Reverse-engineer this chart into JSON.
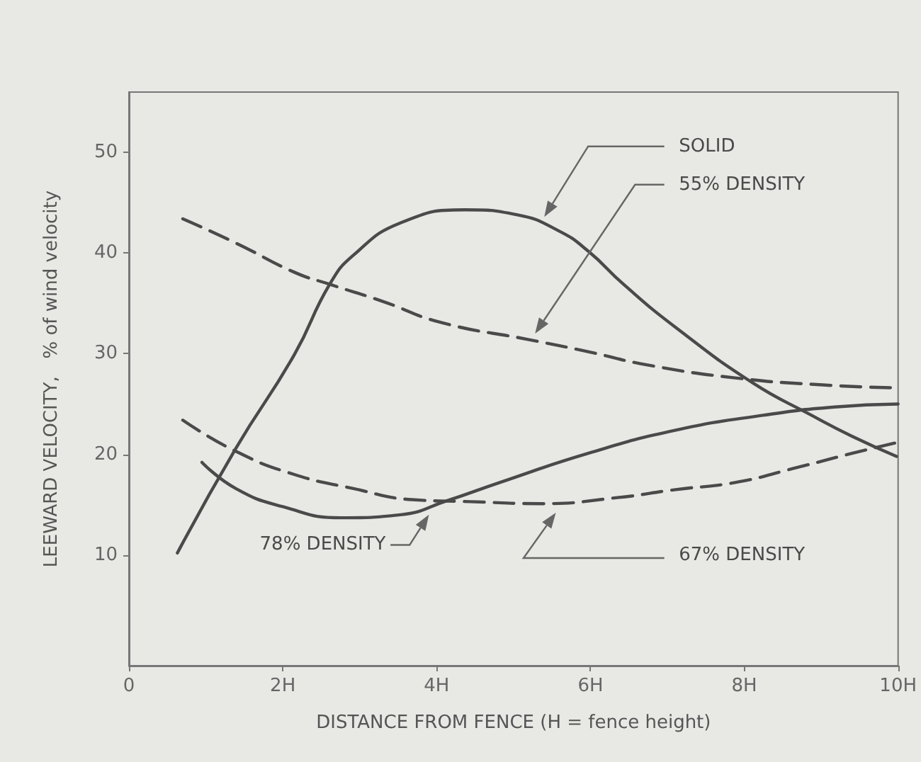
{
  "chart_data": {
    "type": "line",
    "xlabel": "DISTANCE FROM FENCE (H = fence height)",
    "ylabel": "LEEWARD VELOCITY,   % of wind velocity",
    "xlim": [
      0,
      10
    ],
    "xticks": [
      0,
      {
        "value": 2,
        "label": "2H"
      },
      {
        "value": 4,
        "label": "4H"
      },
      {
        "value": 6,
        "label": "6H"
      },
      {
        "value": 8,
        "label": "8H"
      },
      {
        "value": 10,
        "label": "10H"
      }
    ],
    "ylim": [
      -1,
      56
    ],
    "yticks": [
      10,
      20,
      30,
      40,
      50
    ],
    "grid": false,
    "legend": false,
    "marker": "none",
    "series": [
      {
        "name": "SOLID",
        "color": "#4a4a4a",
        "line_style": "solid",
        "x": [
          0.63,
          1.39,
          2.15,
          2.61,
          2.92,
          3.53,
          4.37,
          5.05,
          5.59,
          5.97,
          6.43,
          7.11,
          8.11,
          8.87,
          9.4,
          9.98
        ],
        "values": [
          10.2,
          20.6,
          29.9,
          36.9,
          39.8,
          43.0,
          44.3,
          43.8,
          42.2,
          40.2,
          36.9,
          32.6,
          27.1,
          23.9,
          21.8,
          19.8
        ]
      },
      {
        "name": "55% DENSITY",
        "color": "#4a4a4a",
        "line_style": "dashed",
        "x": [
          0.7,
          1.39,
          2.15,
          2.61,
          3.3,
          4.06,
          5.2,
          5.97,
          6.73,
          7.88,
          9.02,
          10
        ],
        "values": [
          43.4,
          41.0,
          38.1,
          36.9,
          35.2,
          33.1,
          31.4,
          30.2,
          28.9,
          27.6,
          26.9,
          26.6
        ]
      },
      {
        "name": "67% DENSITY",
        "color": "#4a4a4a",
        "line_style": "dashed",
        "x": [
          0.7,
          1.39,
          2.15,
          2.92,
          3.68,
          4.44,
          5.36,
          6.35,
          7.11,
          7.88,
          8.64,
          9.4,
          10
        ],
        "values": [
          23.4,
          20.3,
          18.0,
          16.6,
          15.5,
          15.3,
          15.1,
          15.7,
          16.5,
          17.2,
          18.6,
          20.1,
          21.2
        ]
      },
      {
        "name": "78% DENSITY",
        "color": "#4a4a4a",
        "line_style": "solid",
        "x": [
          0.95,
          1.39,
          2.0,
          2.76,
          3.53,
          4.14,
          4.82,
          5.97,
          7.11,
          8.26,
          9.17,
          10
        ],
        "values": [
          19.2,
          16.6,
          14.8,
          13.7,
          14.0,
          15.4,
          17.2,
          20.1,
          22.4,
          23.9,
          24.7,
          25.0
        ]
      }
    ]
  }
}
